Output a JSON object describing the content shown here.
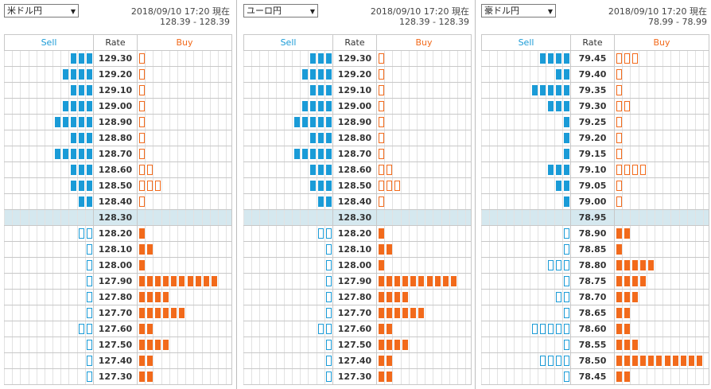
{
  "panels": [
    {
      "pair": "米ドル円",
      "timestamp": "2018/09/10 17:20 現在",
      "bidask": "128.39 - 128.39",
      "headers": {
        "sell": "Sell",
        "rate": "Rate",
        "buy": "Buy"
      },
      "rows": [
        {
          "rate": "129.30",
          "sell": 3,
          "buy": 1,
          "sell_style": "filled",
          "buy_style": "outline"
        },
        {
          "rate": "129.20",
          "sell": 4,
          "buy": 1,
          "sell_style": "filled",
          "buy_style": "outline"
        },
        {
          "rate": "129.10",
          "sell": 3,
          "buy": 1,
          "sell_style": "filled",
          "buy_style": "outline"
        },
        {
          "rate": "129.00",
          "sell": 4,
          "buy": 1,
          "sell_style": "filled",
          "buy_style": "outline"
        },
        {
          "rate": "128.90",
          "sell": 5,
          "buy": 1,
          "sell_style": "filled",
          "buy_style": "outline"
        },
        {
          "rate": "128.80",
          "sell": 3,
          "buy": 1,
          "sell_style": "filled",
          "buy_style": "outline"
        },
        {
          "rate": "128.70",
          "sell": 5,
          "buy": 1,
          "sell_style": "filled",
          "buy_style": "outline"
        },
        {
          "rate": "128.60",
          "sell": 3,
          "buy": 2,
          "sell_style": "filled",
          "buy_style": "outline"
        },
        {
          "rate": "128.50",
          "sell": 3,
          "buy": 3,
          "sell_style": "filled",
          "buy_style": "outline"
        },
        {
          "rate": "128.40",
          "sell": 2,
          "buy": 1,
          "sell_style": "filled",
          "buy_style": "outline"
        },
        {
          "rate": "128.30",
          "sell": 0,
          "buy": 0,
          "current": true
        },
        {
          "rate": "128.20",
          "sell": 2,
          "buy": 1,
          "sell_style": "outline",
          "buy_style": "filled"
        },
        {
          "rate": "128.10",
          "sell": 1,
          "buy": 2,
          "sell_style": "outline",
          "buy_style": "filled"
        },
        {
          "rate": "128.00",
          "sell": 1,
          "buy": 1,
          "sell_style": "outline",
          "buy_style": "filled"
        },
        {
          "rate": "127.90",
          "sell": 1,
          "buy": 10,
          "sell_style": "outline",
          "buy_style": "filled"
        },
        {
          "rate": "127.80",
          "sell": 1,
          "buy": 4,
          "sell_style": "outline",
          "buy_style": "filled"
        },
        {
          "rate": "127.70",
          "sell": 1,
          "buy": 6,
          "sell_style": "outline",
          "buy_style": "filled"
        },
        {
          "rate": "127.60",
          "sell": 2,
          "buy": 2,
          "sell_style": "outline",
          "buy_style": "filled"
        },
        {
          "rate": "127.50",
          "sell": 1,
          "buy": 4,
          "sell_style": "outline",
          "buy_style": "filled"
        },
        {
          "rate": "127.40",
          "sell": 1,
          "buy": 2,
          "sell_style": "outline",
          "buy_style": "filled"
        },
        {
          "rate": "127.30",
          "sell": 1,
          "buy": 2,
          "sell_style": "outline",
          "buy_style": "filled"
        }
      ]
    },
    {
      "pair": "ユーロ円",
      "timestamp": "2018/09/10 17:20 現在",
      "bidask": "128.39 - 128.39",
      "headers": {
        "sell": "Sell",
        "rate": "Rate",
        "buy": "Buy"
      },
      "rows": [
        {
          "rate": "129.30",
          "sell": 3,
          "buy": 1,
          "sell_style": "filled",
          "buy_style": "outline"
        },
        {
          "rate": "129.20",
          "sell": 4,
          "buy": 1,
          "sell_style": "filled",
          "buy_style": "outline"
        },
        {
          "rate": "129.10",
          "sell": 3,
          "buy": 1,
          "sell_style": "filled",
          "buy_style": "outline"
        },
        {
          "rate": "129.00",
          "sell": 4,
          "buy": 1,
          "sell_style": "filled",
          "buy_style": "outline"
        },
        {
          "rate": "128.90",
          "sell": 5,
          "buy": 1,
          "sell_style": "filled",
          "buy_style": "outline"
        },
        {
          "rate": "128.80",
          "sell": 3,
          "buy": 1,
          "sell_style": "filled",
          "buy_style": "outline"
        },
        {
          "rate": "128.70",
          "sell": 5,
          "buy": 1,
          "sell_style": "filled",
          "buy_style": "outline"
        },
        {
          "rate": "128.60",
          "sell": 3,
          "buy": 2,
          "sell_style": "filled",
          "buy_style": "outline"
        },
        {
          "rate": "128.50",
          "sell": 3,
          "buy": 3,
          "sell_style": "filled",
          "buy_style": "outline"
        },
        {
          "rate": "128.40",
          "sell": 2,
          "buy": 1,
          "sell_style": "filled",
          "buy_style": "outline"
        },
        {
          "rate": "128.30",
          "sell": 0,
          "buy": 0,
          "current": true
        },
        {
          "rate": "128.20",
          "sell": 2,
          "buy": 1,
          "sell_style": "outline",
          "buy_style": "filled"
        },
        {
          "rate": "128.10",
          "sell": 1,
          "buy": 2,
          "sell_style": "outline",
          "buy_style": "filled"
        },
        {
          "rate": "128.00",
          "sell": 1,
          "buy": 1,
          "sell_style": "outline",
          "buy_style": "filled"
        },
        {
          "rate": "127.90",
          "sell": 1,
          "buy": 10,
          "sell_style": "outline",
          "buy_style": "filled"
        },
        {
          "rate": "127.80",
          "sell": 1,
          "buy": 4,
          "sell_style": "outline",
          "buy_style": "filled"
        },
        {
          "rate": "127.70",
          "sell": 1,
          "buy": 6,
          "sell_style": "outline",
          "buy_style": "filled"
        },
        {
          "rate": "127.60",
          "sell": 2,
          "buy": 2,
          "sell_style": "outline",
          "buy_style": "filled"
        },
        {
          "rate": "127.50",
          "sell": 1,
          "buy": 4,
          "sell_style": "outline",
          "buy_style": "filled"
        },
        {
          "rate": "127.40",
          "sell": 1,
          "buy": 2,
          "sell_style": "outline",
          "buy_style": "filled"
        },
        {
          "rate": "127.30",
          "sell": 1,
          "buy": 2,
          "sell_style": "outline",
          "buy_style": "filled"
        }
      ]
    },
    {
      "pair": "豪ドル円",
      "timestamp": "2018/09/10 17:20 現在",
      "bidask": "78.99 - 78.99",
      "headers": {
        "sell": "Sell",
        "rate": "Rate",
        "buy": "Buy"
      },
      "rows": [
        {
          "rate": "79.45",
          "sell": 4,
          "buy": 3,
          "sell_style": "filled",
          "buy_style": "outline"
        },
        {
          "rate": "79.40",
          "sell": 2,
          "buy": 1,
          "sell_style": "filled",
          "buy_style": "outline"
        },
        {
          "rate": "79.35",
          "sell": 5,
          "buy": 1,
          "sell_style": "filled",
          "buy_style": "outline"
        },
        {
          "rate": "79.30",
          "sell": 3,
          "buy": 2,
          "sell_style": "filled",
          "buy_style": "outline"
        },
        {
          "rate": "79.25",
          "sell": 1,
          "buy": 1,
          "sell_style": "filled",
          "buy_style": "outline"
        },
        {
          "rate": "79.20",
          "sell": 1,
          "buy": 1,
          "sell_style": "filled",
          "buy_style": "outline"
        },
        {
          "rate": "79.15",
          "sell": 1,
          "buy": 1,
          "sell_style": "filled",
          "buy_style": "outline"
        },
        {
          "rate": "79.10",
          "sell": 3,
          "buy": 4,
          "sell_style": "filled",
          "buy_style": "outline"
        },
        {
          "rate": "79.05",
          "sell": 2,
          "buy": 1,
          "sell_style": "filled",
          "buy_style": "outline"
        },
        {
          "rate": "79.00",
          "sell": 1,
          "buy": 1,
          "sell_style": "filled",
          "buy_style": "outline"
        },
        {
          "rate": "78.95",
          "sell": 0,
          "buy": 0,
          "current": true
        },
        {
          "rate": "78.90",
          "sell": 1,
          "buy": 2,
          "sell_style": "outline",
          "buy_style": "filled"
        },
        {
          "rate": "78.85",
          "sell": 1,
          "buy": 1,
          "sell_style": "outline",
          "buy_style": "filled"
        },
        {
          "rate": "78.80",
          "sell": 3,
          "buy": 5,
          "sell_style": "outline",
          "buy_style": "filled"
        },
        {
          "rate": "78.75",
          "sell": 1,
          "buy": 4,
          "sell_style": "outline",
          "buy_style": "filled"
        },
        {
          "rate": "78.70",
          "sell": 2,
          "buy": 3,
          "sell_style": "outline",
          "buy_style": "filled"
        },
        {
          "rate": "78.65",
          "sell": 1,
          "buy": 2,
          "sell_style": "outline",
          "buy_style": "filled"
        },
        {
          "rate": "78.60",
          "sell": 5,
          "buy": 2,
          "sell_style": "outline",
          "buy_style": "filled"
        },
        {
          "rate": "78.55",
          "sell": 1,
          "buy": 3,
          "sell_style": "outline",
          "buy_style": "filled"
        },
        {
          "rate": "78.50",
          "sell": 4,
          "buy": 11,
          "sell_style": "outline",
          "buy_style": "filled"
        },
        {
          "rate": "78.45",
          "sell": 1,
          "buy": 2,
          "sell_style": "outline",
          "buy_style": "filled"
        }
      ]
    }
  ],
  "colors": {
    "sell": "#1a9bd7",
    "buy": "#f26a1b",
    "current_row": "#d5e8ef"
  },
  "icons": {
    "dropdown": "chevron-down-icon"
  }
}
